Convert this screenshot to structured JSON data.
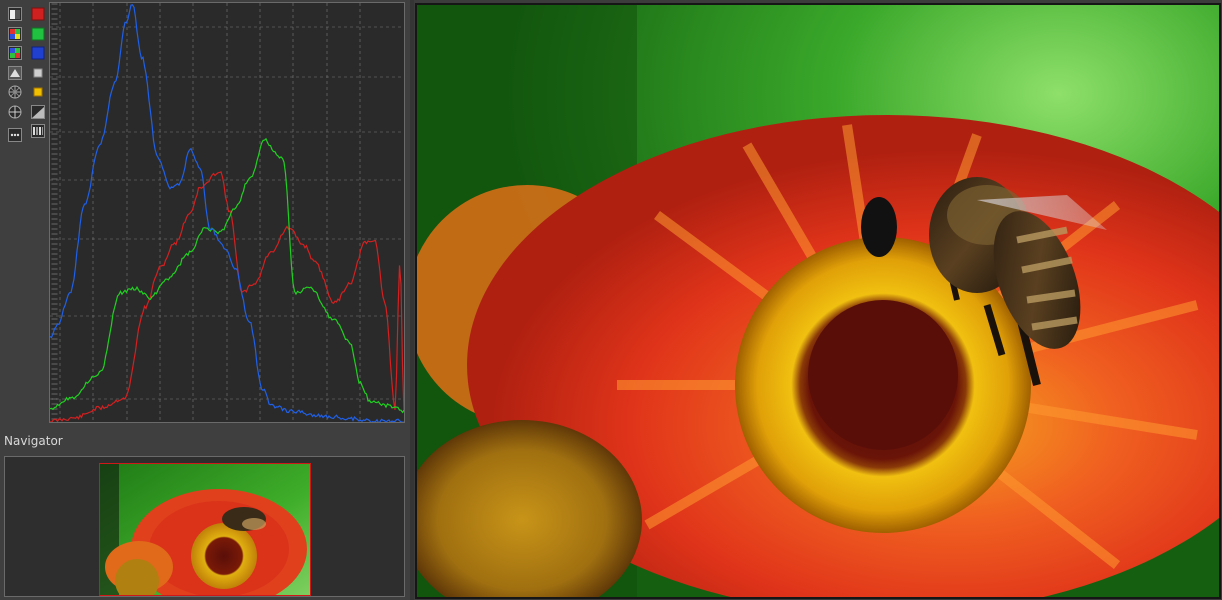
{
  "navigator": {
    "title": "Navigator"
  },
  "histogram": {
    "toolbar": [
      {
        "name": "show-luminance-button",
        "icon": "luminance-icon"
      },
      {
        "name": "show-red-button",
        "icon": "red-channel-icon",
        "color": "#d02020"
      },
      {
        "name": "show-rgb-button",
        "icon": "rgb-icon"
      },
      {
        "name": "show-green-button",
        "icon": "green-channel-icon",
        "color": "#20c040"
      },
      {
        "name": "show-raw-button",
        "icon": "raw-icon"
      },
      {
        "name": "show-blue-button",
        "icon": "blue-channel-icon",
        "color": "#2040d0"
      },
      {
        "name": "show-chroma-button",
        "icon": "chroma-icon"
      },
      {
        "name": "show-luma-button",
        "icon": "luma-icon"
      },
      {
        "name": "show-vectorscope-button",
        "icon": "vectorscope-icon"
      },
      {
        "name": "show-waveform-button",
        "icon": "waveform-icon"
      },
      {
        "name": "show-crosshair-button",
        "icon": "crosshair-icon"
      },
      {
        "name": "show-curve-button",
        "icon": "curve-icon"
      },
      {
        "name": "more-options-button",
        "icon": "ellipsis-icon"
      },
      {
        "name": "show-bar-button",
        "icon": "bar-icon"
      }
    ],
    "colors": {
      "red": "#d42020",
      "green": "#20d020",
      "blue": "#2060e8",
      "grid": "#7a7a7a",
      "background": "#2a2a2a"
    }
  },
  "colors": {
    "panel_bg": "#3f3f3f",
    "viewport_border": "#d01818"
  }
}
